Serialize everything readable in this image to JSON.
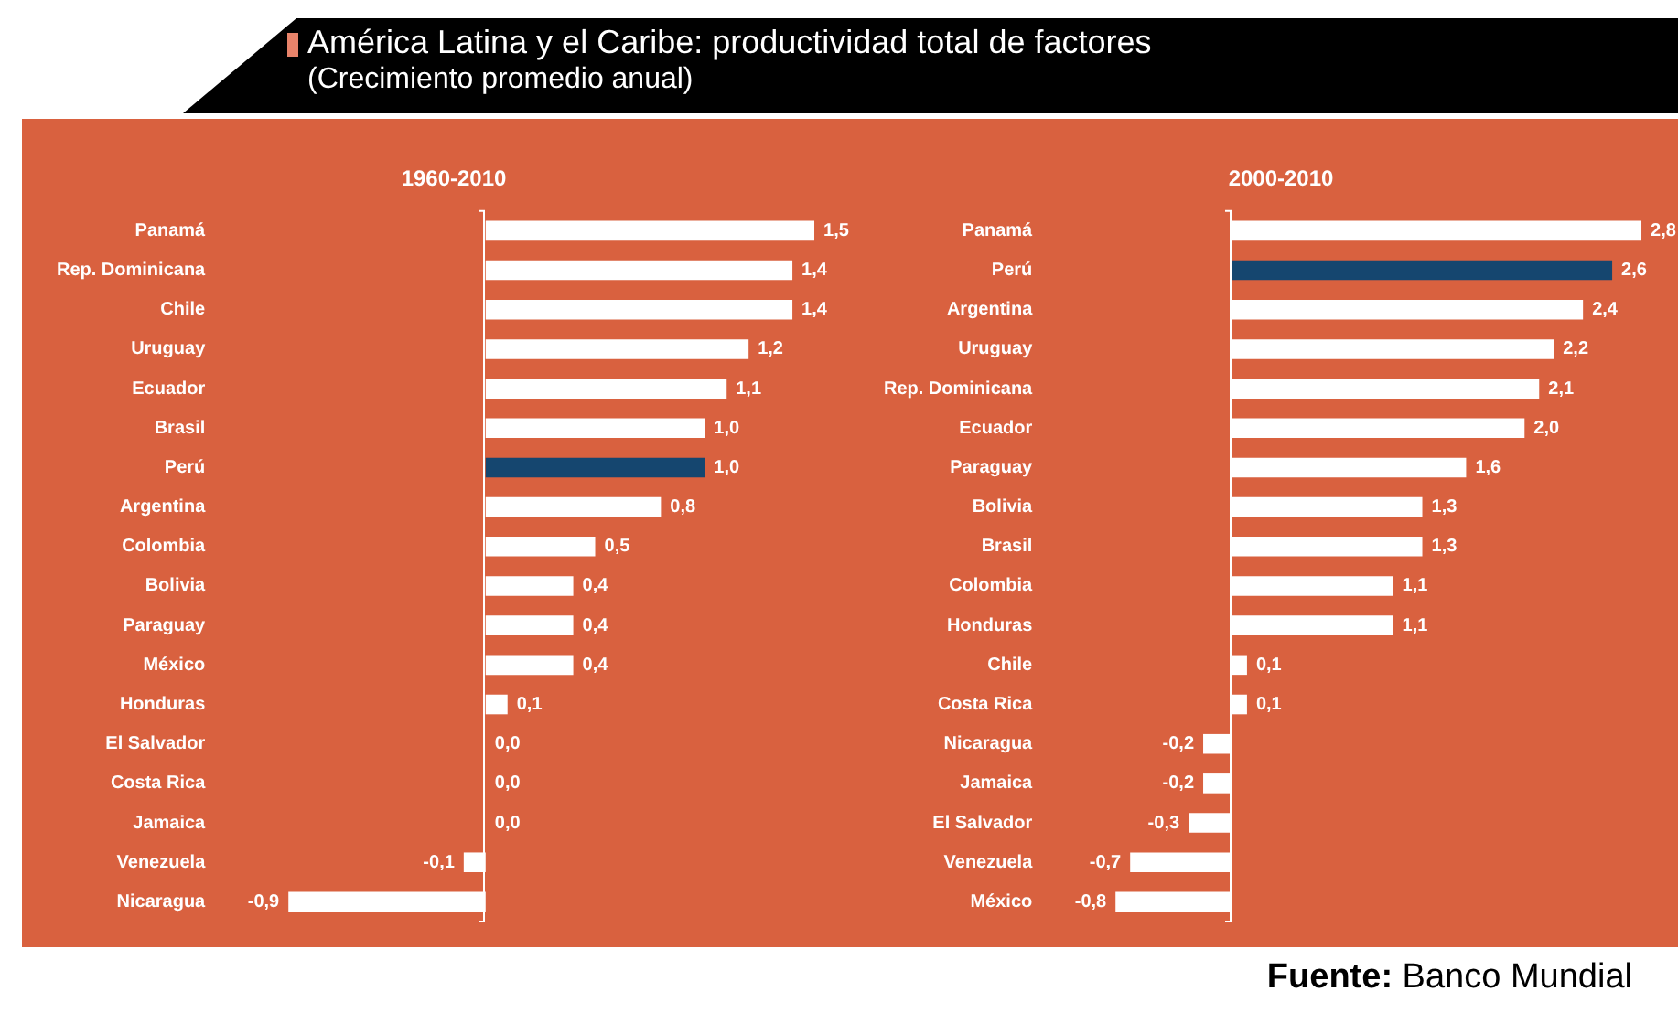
{
  "chart_data": [
    {
      "type": "other",
      "title": "América Latina y el Caribe: productividad total de factores",
      "subtitle": "(Crecimiento promedio anual)",
      "annotations": [
        "Fuente: Banco Mundial"
      ]
    },
    {
      "type": "bar",
      "orientation": "horizontal",
      "title": "1960-2010",
      "tick_labels": "y",
      "legend": false,
      "grid": false,
      "categories": [
        "Panamá",
        "Rep. Dominicana",
        "Chile",
        "Uruguay",
        "Ecuador",
        "Brasil",
        "Perú",
        "Argentina",
        "Colombia",
        "Bolivia",
        "Paraguay",
        "México",
        "Honduras",
        "El Salvador",
        "Costa Rica",
        "Jamaica",
        "Venezuela",
        "Nicaragua"
      ],
      "values": [
        1.5,
        1.4,
        1.4,
        1.2,
        1.1,
        1.0,
        1.0,
        0.8,
        0.5,
        0.4,
        0.4,
        0.4,
        0.1,
        0.0,
        0.0,
        0.0,
        -0.1,
        -0.9
      ],
      "value_labels": [
        "1,5",
        "1,4",
        "1,4",
        "1,2",
        "1,1",
        "1,0",
        "1,0",
        "0,8",
        "0,5",
        "0,4",
        "0,4",
        "0,4",
        "0,1",
        "0,0",
        "0,0",
        "0,0",
        "-0,1",
        "-0,9"
      ],
      "colors": [
        "#ffffff",
        "#ffffff",
        "#ffffff",
        "#ffffff",
        "#ffffff",
        "#ffffff",
        "#15466f",
        "#ffffff",
        "#ffffff",
        "#ffffff",
        "#ffffff",
        "#ffffff",
        "#ffffff",
        "#ffffff",
        "#ffffff",
        "#ffffff",
        "#ffffff",
        "#ffffff"
      ]
    },
    {
      "type": "bar",
      "orientation": "horizontal",
      "title": "2000-2010",
      "tick_labels": "y",
      "legend": false,
      "grid": false,
      "categories": [
        "Panamá",
        "Perú",
        "Argentina",
        "Uruguay",
        "Rep. Dominicana",
        "Ecuador",
        "Paraguay",
        "Bolivia",
        "Brasil",
        "Colombia",
        "Honduras",
        "Chile",
        "Costa Rica",
        "Nicaragua",
        "Jamaica",
        "El Salvador",
        "Venezuela",
        "México"
      ],
      "values": [
        2.8,
        2.6,
        2.4,
        2.2,
        2.1,
        2.0,
        1.6,
        1.3,
        1.3,
        1.1,
        1.1,
        0.1,
        0.1,
        -0.2,
        -0.2,
        -0.3,
        -0.7,
        -0.8
      ],
      "value_labels": [
        "2,8",
        "2,6",
        "2,4",
        "2,2",
        "2,1",
        "2,0",
        "1,6",
        "1,3",
        "1,3",
        "1,1",
        "1,1",
        "0,1",
        "0,1",
        "-0,2",
        "-0,2",
        "-0,3",
        "-0,7",
        "-0,8"
      ],
      "colors": [
        "#ffffff",
        "#15466f",
        "#ffffff",
        "#ffffff",
        "#ffffff",
        "#ffffff",
        "#ffffff",
        "#ffffff",
        "#ffffff",
        "#ffffff",
        "#ffffff",
        "#ffffff",
        "#ffffff",
        "#ffffff",
        "#ffffff",
        "#ffffff",
        "#ffffff",
        "#ffffff"
      ]
    }
  ]
}
